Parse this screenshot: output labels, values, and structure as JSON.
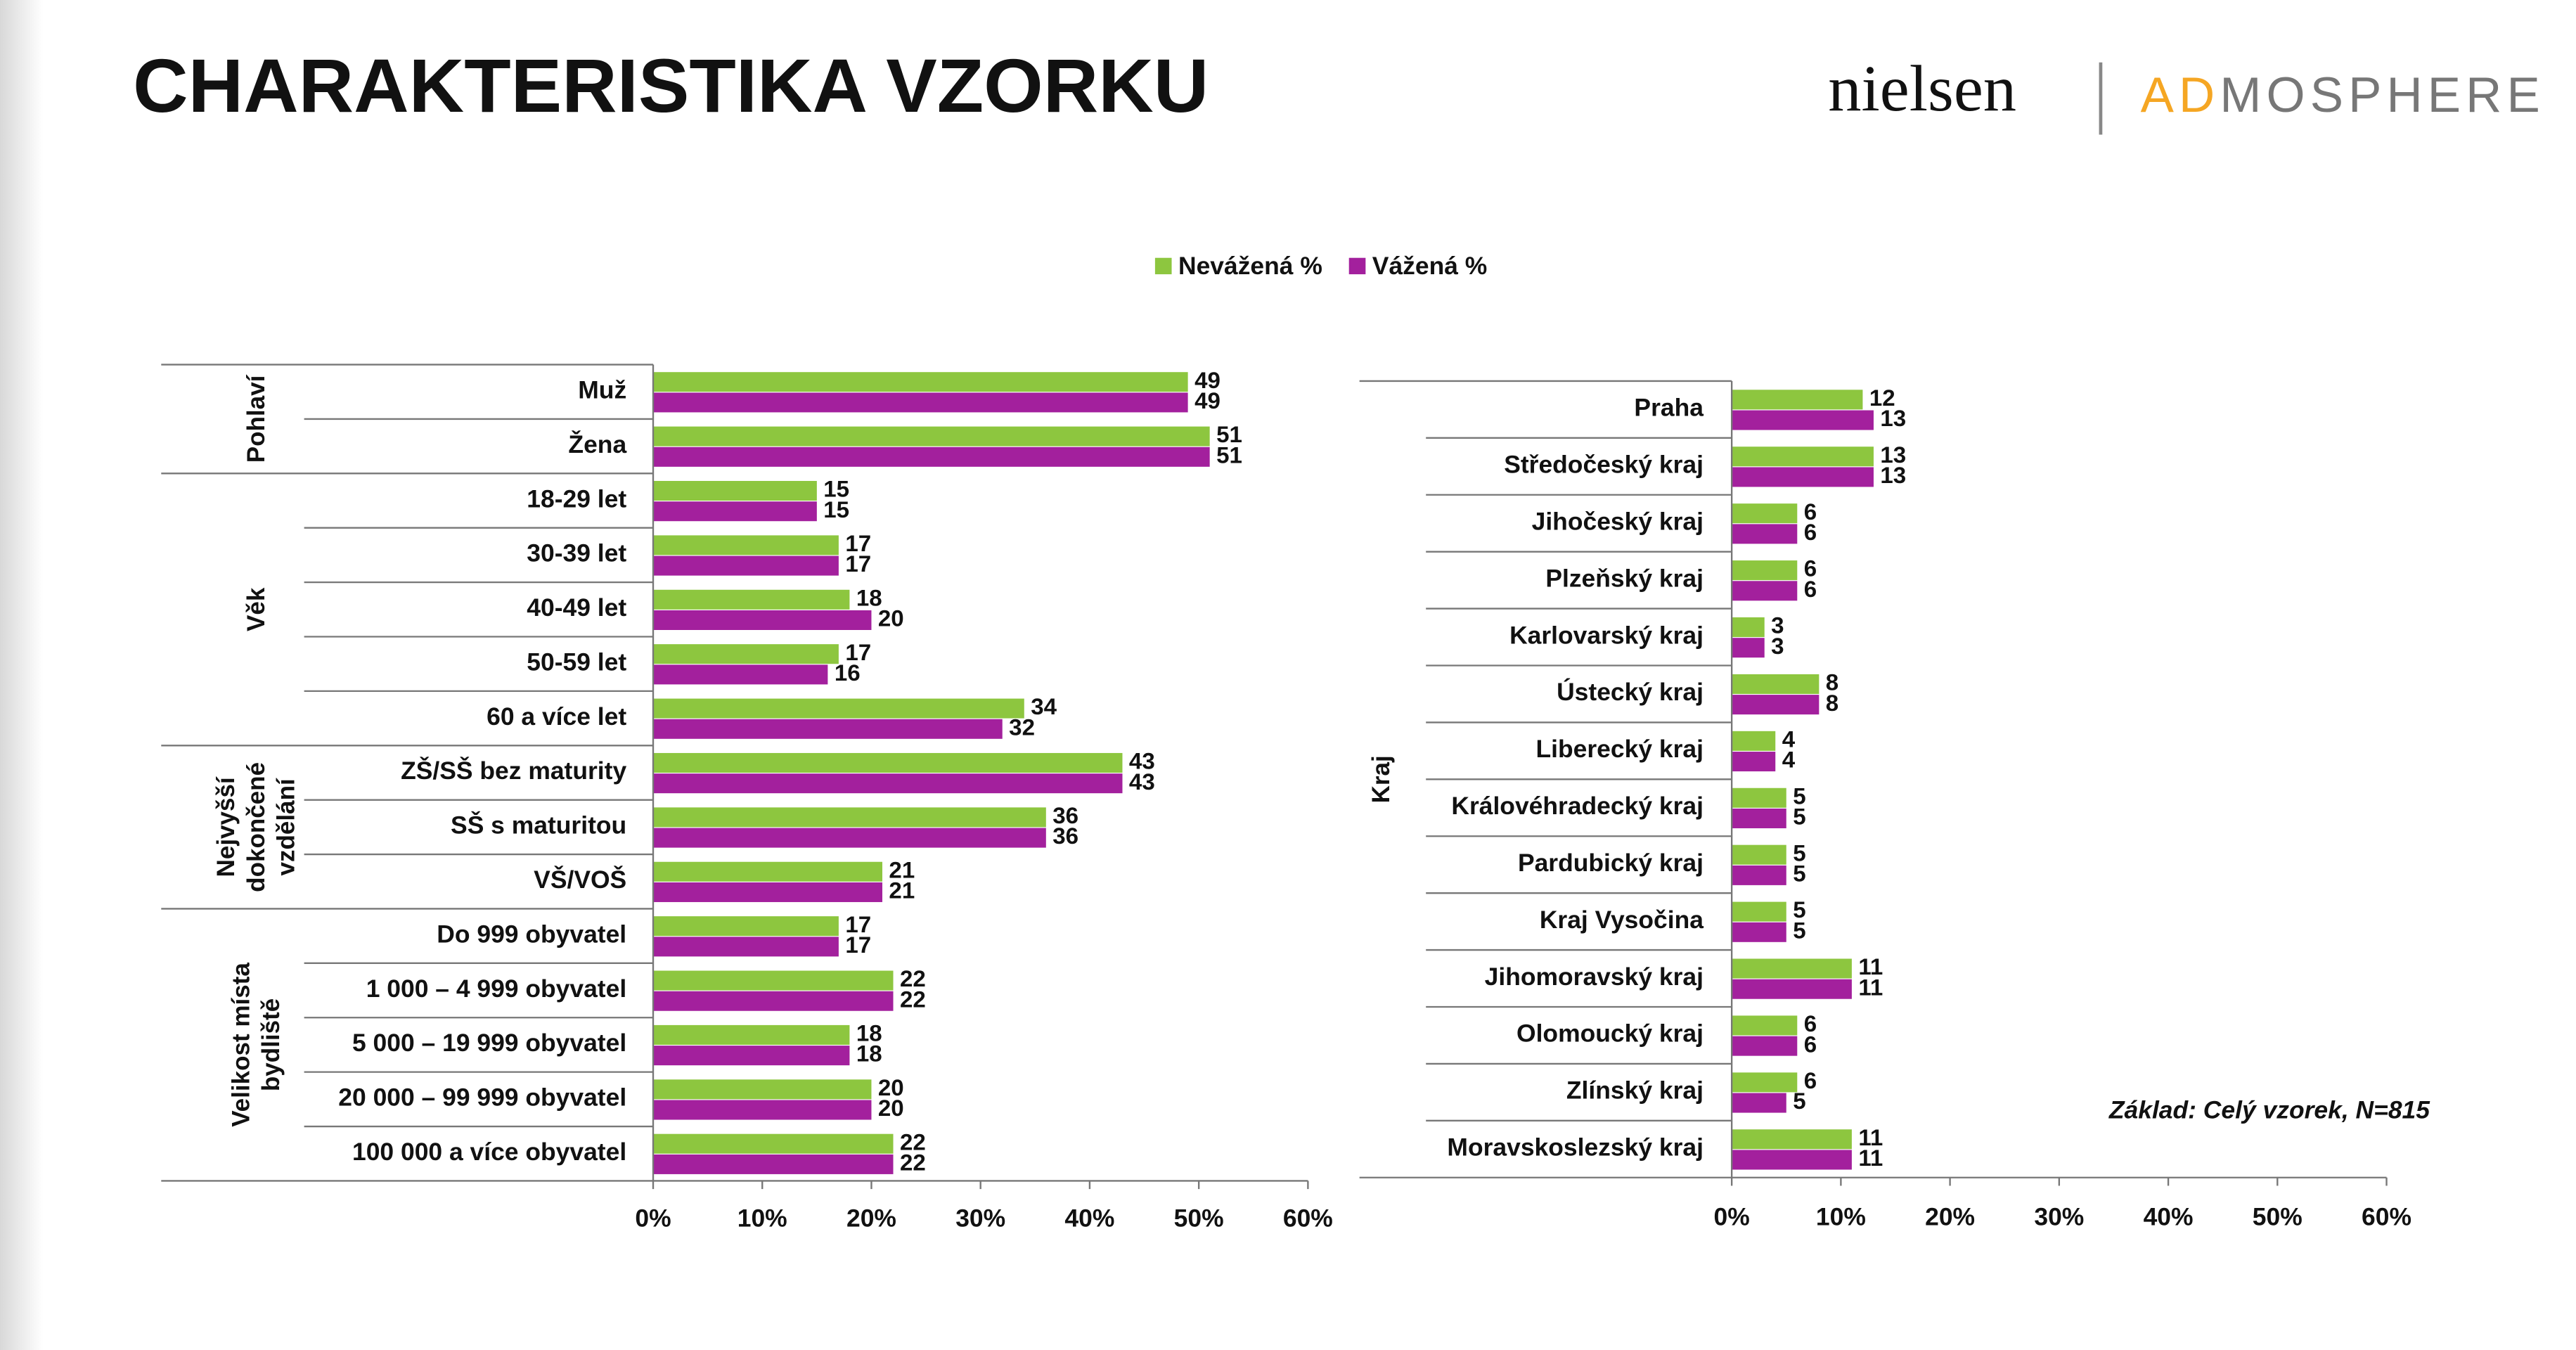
{
  "header": {
    "title": "CHARAKTERISTIKA VZORKU",
    "logo_nielsen": "nielsen",
    "logo_admosphere": [
      "AD",
      "MOSPHERE"
    ]
  },
  "chart_data": [
    {
      "type": "hbar",
      "legend": "top",
      "series": [
        {
          "name": "Nevážená %",
          "color": "#8dc63f",
          "values": [
            49,
            51,
            15,
            17,
            18,
            17,
            34,
            43,
            36,
            21,
            17,
            22,
            18,
            20,
            22
          ]
        },
        {
          "name": "Vážená %",
          "color": "#a3209d",
          "values": [
            49,
            51,
            15,
            17,
            20,
            16,
            32,
            43,
            36,
            21,
            17,
            22,
            18,
            20,
            22
          ]
        }
      ],
      "groups": [
        {
          "label": [
            "Pohlaví"
          ],
          "categories": [
            "Muž",
            "Žena"
          ]
        },
        {
          "label": [
            "Věk"
          ],
          "categories": [
            "18-29 let",
            "30-39 let",
            "40-49 let",
            "50-59 let",
            "60 a více let"
          ]
        },
        {
          "label": [
            "Nejvyšší",
            "dokončené",
            "vzdělání"
          ],
          "categories": [
            "ZŠ/SŠ bez maturity",
            "SŠ s maturitou",
            "VŠ/VOŠ"
          ]
        },
        {
          "label": [
            "Velikost místa",
            "bydliště"
          ],
          "categories": [
            "Do 999 obyvatel",
            "1 000 – 4 999 obyvatel",
            "5 000 – 19 999 obyvatel",
            "20 000 – 99 999 obyvatel",
            "100 000 a více obyvatel"
          ]
        }
      ],
      "xlim": [
        0,
        60
      ],
      "xticks": [
        {
          "value": 0,
          "label": "0%"
        },
        {
          "value": 10,
          "label": "10%"
        },
        {
          "value": 20,
          "label": "20%"
        },
        {
          "value": 30,
          "label": "30%"
        },
        {
          "value": 40,
          "label": "40%"
        },
        {
          "value": 50,
          "label": "50%"
        },
        {
          "value": 60,
          "label": "60%"
        }
      ]
    },
    {
      "type": "hbar",
      "series": [
        {
          "color": "#8dc63f",
          "values": [
            12,
            13,
            6,
            6,
            3,
            8,
            4,
            5,
            5,
            5,
            11,
            6,
            6,
            11
          ]
        },
        {
          "color": "#a3209d",
          "values": [
            13,
            13,
            6,
            6,
            3,
            8,
            4,
            5,
            5,
            5,
            11,
            6,
            5,
            11
          ]
        }
      ],
      "groups": [
        {
          "label": [
            "Kraj"
          ],
          "categories": [
            "Praha",
            "Středočeský kraj",
            "Jihočeský kraj",
            "Plzeňský kraj",
            "Karlovarský kraj",
            "Ústecký kraj",
            "Liberecký kraj",
            "Královéhradecký kraj",
            "Pardubický kraj",
            "Kraj Vysočina",
            "Jihomoravský kraj",
            "Olomoucký kraj",
            "Zlínský kraj",
            "Moravskoslezský kraj"
          ]
        }
      ],
      "xlim": [
        0,
        60
      ],
      "xticks": [
        {
          "value": 0,
          "label": "0%"
        },
        {
          "value": 10,
          "label": "10%"
        },
        {
          "value": 20,
          "label": "20%"
        },
        {
          "value": 30,
          "label": "30%"
        },
        {
          "value": 40,
          "label": "40%"
        },
        {
          "value": 50,
          "label": "50%"
        },
        {
          "value": 60,
          "label": "60%"
        }
      ],
      "annotation": "Základ: Celý vzorek, N=815"
    }
  ]
}
